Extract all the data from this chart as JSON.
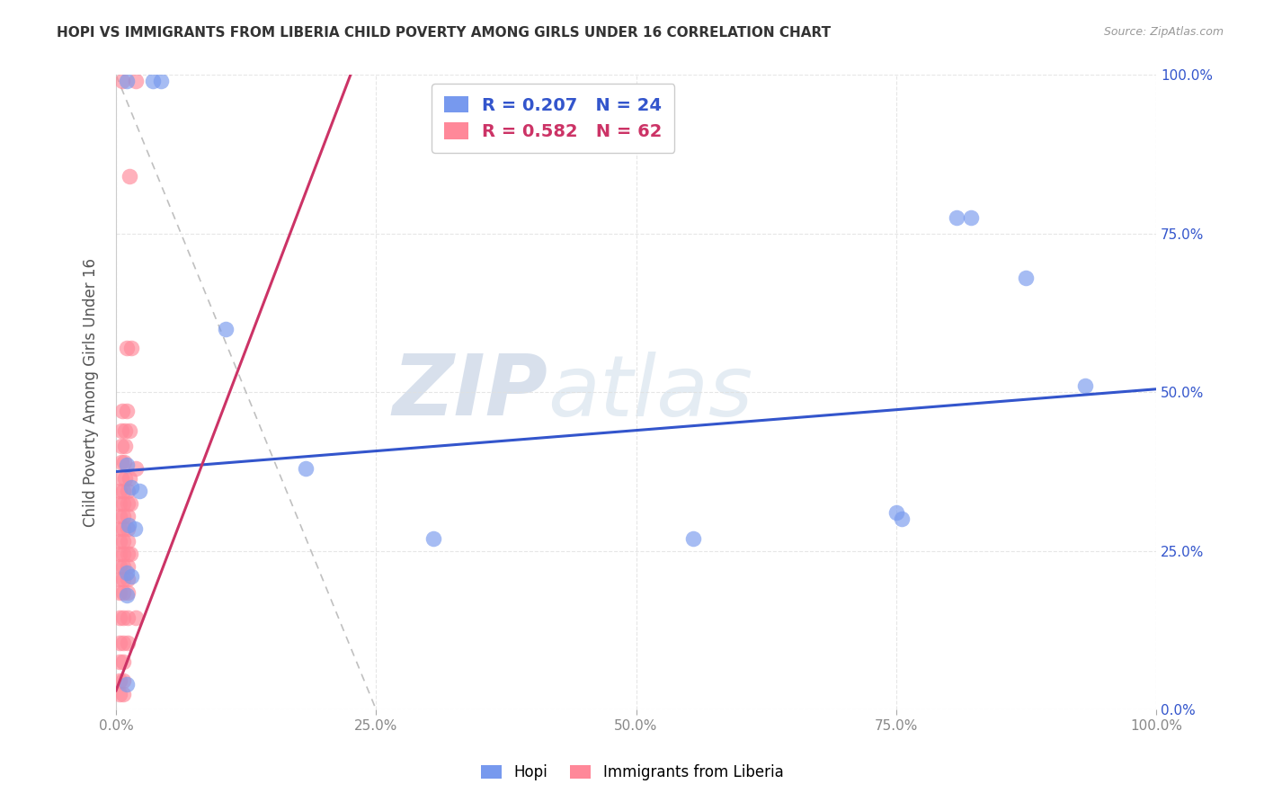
{
  "title": "HOPI VS IMMIGRANTS FROM LIBERIA CHILD POVERTY AMONG GIRLS UNDER 16 CORRELATION CHART",
  "source": "Source: ZipAtlas.com",
  "ylabel": "Child Poverty Among Girls Under 16",
  "xlim": [
    0,
    100
  ],
  "ylim": [
    0,
    100
  ],
  "xtick_major": [
    0,
    25,
    50,
    75,
    100
  ],
  "ytick_major": [
    0,
    25,
    50,
    75,
    100
  ],
  "xtick_minor": [
    0,
    5,
    10,
    15,
    20,
    25,
    30,
    35,
    40,
    45,
    50,
    55,
    60,
    65,
    70,
    75,
    80,
    85,
    90,
    95,
    100
  ],
  "ytick_minor": [
    0,
    5,
    10,
    15,
    20,
    25,
    30,
    35,
    40,
    45,
    50,
    55,
    60,
    65,
    70,
    75,
    80,
    85,
    90,
    95,
    100
  ],
  "hopi_color": "#7799ee",
  "liberia_color": "#ff8899",
  "hopi_R": 0.207,
  "hopi_N": 24,
  "liberia_R": 0.582,
  "liberia_N": 62,
  "hopi_scatter": [
    [
      1.0,
      99.0
    ],
    [
      3.5,
      99.0
    ],
    [
      4.3,
      99.0
    ],
    [
      1.0,
      38.5
    ],
    [
      1.5,
      35.0
    ],
    [
      2.2,
      34.5
    ],
    [
      1.2,
      29.0
    ],
    [
      1.8,
      28.5
    ],
    [
      1.0,
      21.5
    ],
    [
      1.5,
      21.0
    ],
    [
      1.0,
      18.0
    ],
    [
      10.5,
      60.0
    ],
    [
      18.2,
      38.0
    ],
    [
      30.5,
      27.0
    ],
    [
      55.5,
      27.0
    ],
    [
      75.0,
      31.0
    ],
    [
      75.5,
      30.0
    ],
    [
      80.8,
      77.5
    ],
    [
      82.2,
      77.5
    ],
    [
      87.5,
      68.0
    ],
    [
      93.2,
      51.0
    ],
    [
      1.0,
      4.0
    ]
  ],
  "liberia_scatter": [
    [
      0.6,
      99.0
    ],
    [
      1.9,
      99.0
    ],
    [
      1.3,
      84.0
    ],
    [
      1.0,
      57.0
    ],
    [
      1.5,
      57.0
    ],
    [
      0.6,
      47.0
    ],
    [
      1.0,
      47.0
    ],
    [
      0.5,
      44.0
    ],
    [
      0.9,
      44.0
    ],
    [
      1.3,
      44.0
    ],
    [
      0.5,
      41.5
    ],
    [
      0.9,
      41.5
    ],
    [
      0.5,
      39.0
    ],
    [
      0.8,
      39.0
    ],
    [
      0.5,
      36.5
    ],
    [
      0.9,
      36.5
    ],
    [
      1.3,
      36.5
    ],
    [
      0.3,
      34.5
    ],
    [
      0.7,
      34.5
    ],
    [
      1.1,
      34.5
    ],
    [
      0.3,
      32.5
    ],
    [
      0.7,
      32.5
    ],
    [
      1.1,
      32.5
    ],
    [
      1.4,
      32.5
    ],
    [
      0.3,
      30.5
    ],
    [
      0.7,
      30.5
    ],
    [
      1.1,
      30.5
    ],
    [
      0.3,
      28.5
    ],
    [
      0.7,
      28.5
    ],
    [
      1.1,
      28.5
    ],
    [
      0.3,
      26.5
    ],
    [
      0.7,
      26.5
    ],
    [
      1.1,
      26.5
    ],
    [
      0.3,
      24.5
    ],
    [
      0.7,
      24.5
    ],
    [
      1.1,
      24.5
    ],
    [
      1.4,
      24.5
    ],
    [
      0.3,
      22.5
    ],
    [
      0.7,
      22.5
    ],
    [
      1.1,
      22.5
    ],
    [
      0.3,
      20.5
    ],
    [
      0.7,
      20.5
    ],
    [
      1.1,
      20.5
    ],
    [
      0.3,
      18.5
    ],
    [
      0.7,
      18.5
    ],
    [
      1.1,
      18.5
    ],
    [
      0.3,
      14.5
    ],
    [
      0.7,
      14.5
    ],
    [
      1.1,
      14.5
    ],
    [
      0.3,
      10.5
    ],
    [
      0.7,
      10.5
    ],
    [
      1.1,
      10.5
    ],
    [
      0.3,
      7.5
    ],
    [
      0.7,
      7.5
    ],
    [
      0.3,
      4.5
    ],
    [
      0.7,
      4.5
    ],
    [
      0.3,
      2.5
    ],
    [
      0.7,
      2.5
    ],
    [
      1.9,
      38.0
    ],
    [
      1.9,
      14.5
    ]
  ],
  "hopi_line_color": "#3355cc",
  "liberia_line_color": "#cc3366",
  "hopi_line_x": [
    0,
    100
  ],
  "hopi_line_y": [
    37.5,
    50.5
  ],
  "liberia_line_x": [
    0,
    23
  ],
  "liberia_line_y": [
    3.0,
    102.0
  ],
  "diag_line_x": [
    0,
    25
  ],
  "diag_line_y": [
    100,
    0
  ],
  "watermark_zip": "ZIP",
  "watermark_atlas": "atlas",
  "bg_color": "#ffffff",
  "grid_color": "#e0e0e0"
}
